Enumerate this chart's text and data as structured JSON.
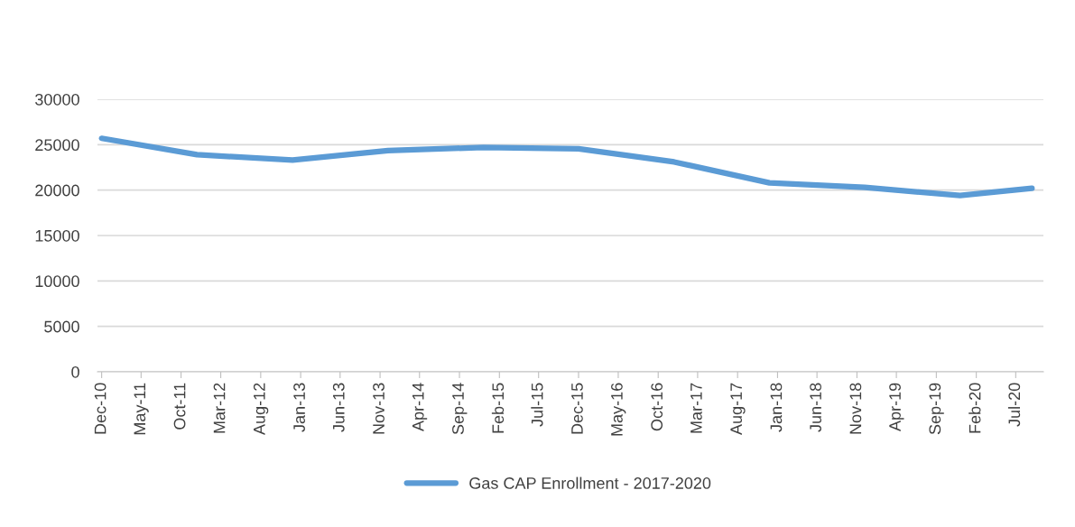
{
  "chart_data": {
    "type": "line",
    "x": [
      "2010-12",
      "2011-12",
      "2012-12",
      "2013-12",
      "2014-12",
      "2015-12",
      "2016-12",
      "2017-12",
      "2018-12",
      "2019-12",
      "2020-09"
    ],
    "series": [
      {
        "name": "Gas CAP Enrollment - 2017-2020",
        "color": "#5b9bd5",
        "values": [
          25700,
          23900,
          23300,
          24350,
          24700,
          24550,
          23100,
          20800,
          20300,
          19400,
          20200
        ]
      }
    ],
    "xlim": [
      "2010-11-15",
      "2020-10-15"
    ],
    "xticks": [
      {
        "value": "2010-12",
        "label": "Dec-10"
      },
      {
        "value": "2011-05",
        "label": "May-11"
      },
      {
        "value": "2011-10",
        "label": "Oct-11"
      },
      {
        "value": "2012-03",
        "label": "Mar-12"
      },
      {
        "value": "2012-08",
        "label": "Aug-12"
      },
      {
        "value": "2013-01",
        "label": "Jan-13"
      },
      {
        "value": "2013-06",
        "label": "Jun-13"
      },
      {
        "value": "2013-11",
        "label": "Nov-13"
      },
      {
        "value": "2014-04",
        "label": "Apr-14"
      },
      {
        "value": "2014-09",
        "label": "Sep-14"
      },
      {
        "value": "2015-02",
        "label": "Feb-15"
      },
      {
        "value": "2015-07",
        "label": "Jul-15"
      },
      {
        "value": "2015-12",
        "label": "Dec-15"
      },
      {
        "value": "2016-05",
        "label": "May-16"
      },
      {
        "value": "2016-10",
        "label": "Oct-16"
      },
      {
        "value": "2017-03",
        "label": "Mar-17"
      },
      {
        "value": "2017-08",
        "label": "Aug-17"
      },
      {
        "value": "2018-01",
        "label": "Jan-18"
      },
      {
        "value": "2018-06",
        "label": "Jun-18"
      },
      {
        "value": "2018-11",
        "label": "Nov-18"
      },
      {
        "value": "2019-04",
        "label": "Apr-19"
      },
      {
        "value": "2019-09",
        "label": "Sep-19"
      },
      {
        "value": "2020-02",
        "label": "Feb-20"
      },
      {
        "value": "2020-07",
        "label": "Jul-20"
      }
    ],
    "ylim": [
      0,
      30000
    ],
    "yticks": [
      0,
      5000,
      10000,
      15000,
      20000,
      25000,
      30000
    ],
    "grid": "y",
    "legend": "bottom",
    "marker": "none",
    "line_style": "solid"
  }
}
